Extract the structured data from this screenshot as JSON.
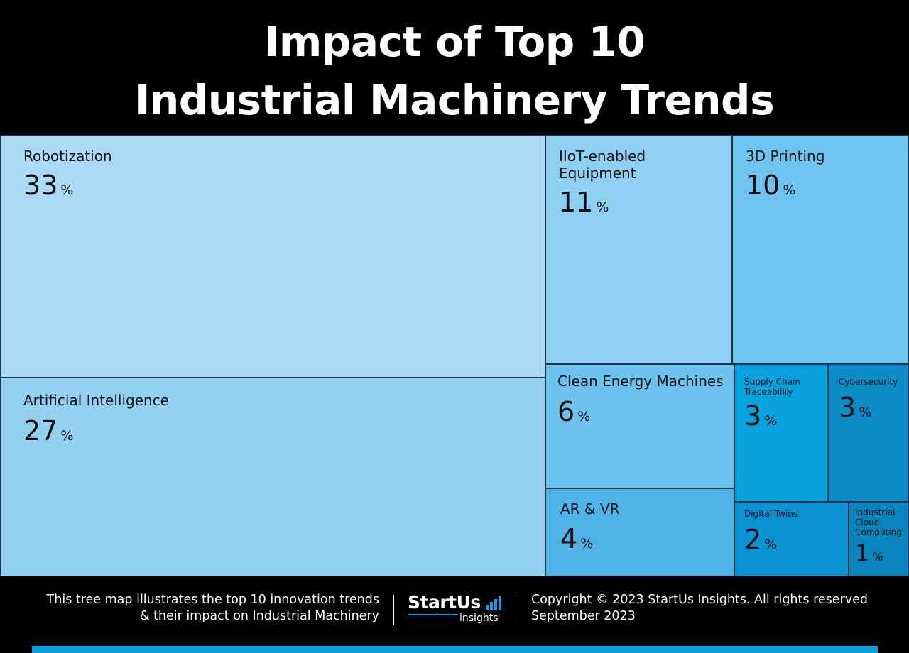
{
  "header": {
    "title_line1": "Impact of Top 10",
    "title_line2": "Industrial Machinery Trends"
  },
  "chart_data": {
    "type": "treemap",
    "title": "Impact of Top 10 Industrial Machinery Trends",
    "unit": "%",
    "items": [
      {
        "label": "Robotization",
        "value": 33,
        "color": "#acdaf6"
      },
      {
        "label": "Artificial Intelligence",
        "value": 27,
        "color": "#93d0f2"
      },
      {
        "label": "IIoT-enabled Equipment",
        "value": 11,
        "color": "#8fcff1"
      },
      {
        "label": "3D Printing",
        "value": 10,
        "color": "#6fc3ef"
      },
      {
        "label": "Clean Energy Machines",
        "value": 6,
        "color": "#6dc3ee"
      },
      {
        "label": "AR & VR",
        "value": 4,
        "color": "#4fb3e7"
      },
      {
        "label": "Supply Chain Traceability",
        "value": 3,
        "color": "#08a3df"
      },
      {
        "label": "Cybersecurity",
        "value": 3,
        "color": "#0b8cc6"
      },
      {
        "label": "Digital Twins",
        "value": 2,
        "color": "#0a92d2"
      },
      {
        "label": "Industrial Cloud Computing",
        "value": 1,
        "color": "#0a84be"
      }
    ]
  },
  "footer": {
    "description_line1": "This tree map illustrates the top 10 innovation trends",
    "description_line2": "& their impact on Industrial Machinery",
    "logo_main": "StartUs",
    "logo_sub": "insights",
    "copyright_line1": "Copyright © 2023 StartUs Insights. All rights reserved",
    "copyright_line2": "September 2023",
    "accent_color": "#0a9fdc"
  }
}
